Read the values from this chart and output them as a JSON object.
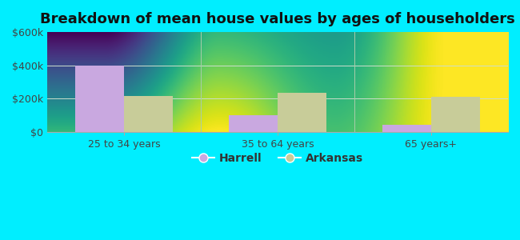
{
  "title": "Breakdown of mean house values by ages of householders",
  "categories": [
    "25 to 34 years",
    "35 to 64 years",
    "65 years+"
  ],
  "harrell_values": [
    400000,
    100000,
    45000
  ],
  "arkansas_values": [
    215000,
    235000,
    210000
  ],
  "harrell_color": "#c9a8e0",
  "arkansas_color": "#c8cc99",
  "ylim": [
    0,
    600000
  ],
  "yticks": [
    0,
    200000,
    400000,
    600000
  ],
  "ytick_labels": [
    "$0",
    "$200k",
    "$400k",
    "$600k"
  ],
  "legend_labels": [
    "Harrell",
    "Arkansas"
  ],
  "bar_width": 0.32,
  "background_outer": "#00eeff",
  "bg_top": "#cceee8",
  "bg_bottom": "#eefff0",
  "title_fontsize": 13,
  "tick_fontsize": 9,
  "legend_fontsize": 10
}
